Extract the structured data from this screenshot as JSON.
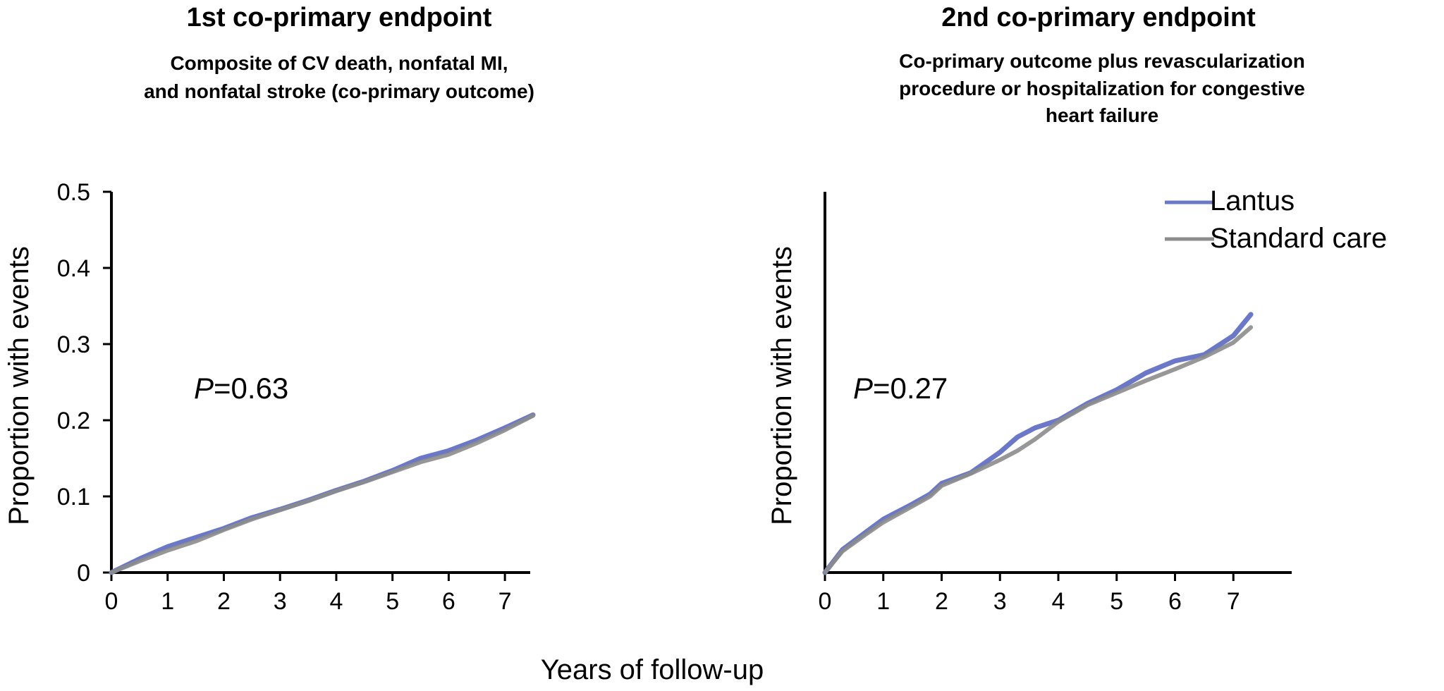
{
  "colors": {
    "lantus": "#6b78c8",
    "standard_care": "#8c8c8c",
    "axis": "#000000"
  },
  "shared_xlabel": "Years of follow-up",
  "legend": [
    {
      "key": "lantus",
      "label": "Lantus"
    },
    {
      "key": "standard_care",
      "label": "Standard care"
    }
  ],
  "chart_data": [
    {
      "type": "line",
      "title": "1st co-primary endpoint",
      "subtitle_lines": [
        "Composite of CV death, nonfatal MI,",
        "and nonfatal stroke (co-primary outcome)"
      ],
      "ylabel": "Proportion with events",
      "annotation": {
        "italic": "P",
        "text": "=0.63"
      },
      "xlim": [
        0,
        7.3
      ],
      "ylim": [
        0,
        0.5
      ],
      "xticks": [
        "0",
        "1",
        "2",
        "3",
        "4",
        "5",
        "6",
        "7"
      ],
      "yticks": [
        "0",
        "0.1",
        "0.2",
        "0.3",
        "0.4",
        "0.5"
      ],
      "series": [
        {
          "name": "Lantus",
          "key": "lantus",
          "x": [
            0,
            0.5,
            1,
            1.5,
            2,
            2.5,
            3,
            3.5,
            4,
            4.5,
            5,
            5.5,
            6,
            6.5,
            7,
            7.5
          ],
          "y": [
            0,
            0.018,
            0.034,
            0.046,
            0.058,
            0.072,
            0.083,
            0.095,
            0.108,
            0.12,
            0.134,
            0.15,
            0.16,
            0.174,
            0.19,
            0.207
          ]
        },
        {
          "name": "Standard care",
          "key": "standard_care",
          "x": [
            0,
            0.5,
            1,
            1.5,
            2,
            2.5,
            3,
            3.5,
            4,
            4.5,
            5,
            5.5,
            6,
            6.5,
            7,
            7.5
          ],
          "y": [
            0,
            0.015,
            0.029,
            0.041,
            0.056,
            0.07,
            0.082,
            0.094,
            0.107,
            0.119,
            0.132,
            0.145,
            0.155,
            0.17,
            0.187,
            0.206
          ]
        }
      ]
    },
    {
      "type": "line",
      "title": "2nd co-primary endpoint",
      "subtitle_lines": [
        "Co-primary outcome plus revascularization",
        "procedure or hospitalization for congestive",
        "heart failure"
      ],
      "ylabel": "Proportion with events",
      "annotation": {
        "italic": "P",
        "text": "=0.27"
      },
      "xlim": [
        0,
        7.9
      ],
      "ylim": [
        0,
        0.5
      ],
      "xticks": [
        "0",
        "1",
        "2",
        "3",
        "4",
        "5",
        "6",
        "7"
      ],
      "yticks": [],
      "series": [
        {
          "name": "Lantus",
          "key": "lantus",
          "x": [
            0,
            0.3,
            0.7,
            1,
            1.5,
            1.8,
            2,
            2.5,
            3,
            3.3,
            3.6,
            4,
            4.5,
            5,
            5.5,
            6,
            6.5,
            7,
            7.3
          ],
          "y": [
            0,
            0.03,
            0.053,
            0.07,
            0.09,
            0.103,
            0.117,
            0.131,
            0.158,
            0.178,
            0.19,
            0.2,
            0.222,
            0.24,
            0.262,
            0.278,
            0.286,
            0.311,
            0.339
          ]
        },
        {
          "name": "Standard care",
          "key": "standard_care",
          "x": [
            0,
            0.3,
            0.7,
            1,
            1.5,
            1.8,
            2,
            2.5,
            3,
            3.3,
            3.6,
            4,
            4.5,
            5,
            5.5,
            6,
            6.5,
            7,
            7.3
          ],
          "y": [
            0,
            0.028,
            0.05,
            0.066,
            0.087,
            0.1,
            0.114,
            0.13,
            0.148,
            0.16,
            0.175,
            0.198,
            0.22,
            0.236,
            0.252,
            0.267,
            0.283,
            0.302,
            0.322
          ]
        }
      ]
    }
  ]
}
